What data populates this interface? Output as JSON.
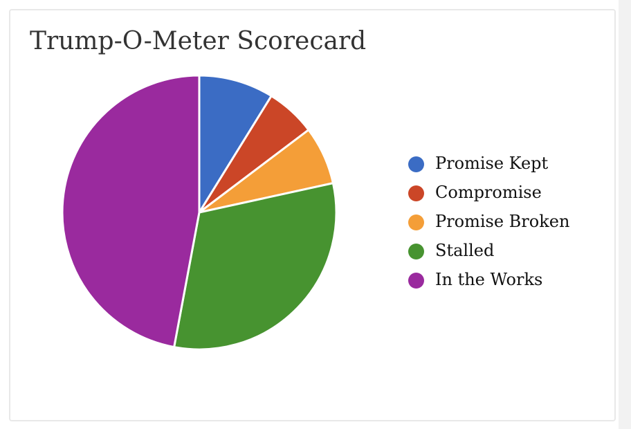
{
  "page": {
    "background_color": "#ffffff",
    "card_border_color": "#e8e8e8",
    "scrollbar_track_color": "#f2f2f2"
  },
  "chart_data": {
    "type": "pie",
    "title": "Trump-O-Meter Scorecard",
    "categories": [
      "Promise Kept",
      "Compromise",
      "Promise Broken",
      "Stalled",
      "In the Works"
    ],
    "values": [
      9,
      6,
      7,
      32,
      48
    ],
    "percentages": [
      8.8,
      5.9,
      6.9,
      31.4,
      47.1
    ],
    "slice_angles_deg": [
      31.8,
      21.2,
      24.7,
      112.9,
      169.4
    ],
    "colors": [
      "#3B6CC4",
      "#CB4627",
      "#F49E38",
      "#479330",
      "#9A2A9E"
    ],
    "start_angle": "12 o'clock",
    "direction": "clockwise",
    "slice_separator_color": "#ffffff",
    "radius_px": 198,
    "legend_position": "right",
    "legend_marker": "circle",
    "title_color": "#333333",
    "label_color": "#111111",
    "data_labels_shown": false
  }
}
